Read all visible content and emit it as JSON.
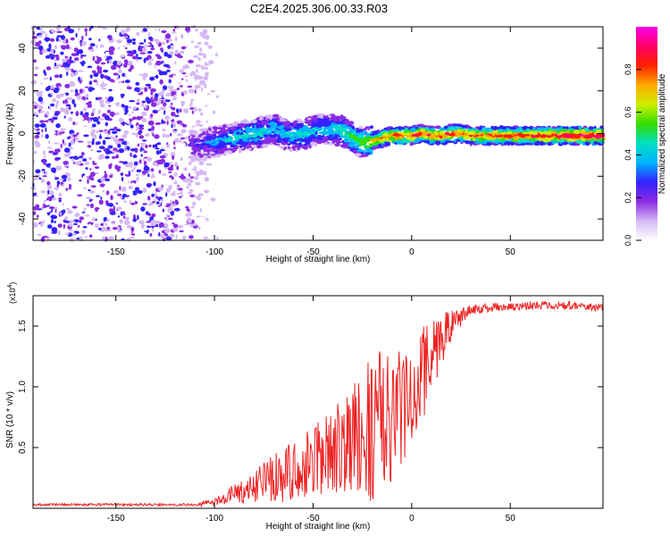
{
  "figure": {
    "title": "C2E4.2025.306.00.33.R03"
  },
  "chart_data": [
    {
      "type": "heatmap",
      "name": "spectrogram",
      "xlabel": "Height of straight line (km)",
      "ylabel": "Frequency (Hz)",
      "xlim": [
        -192,
        97
      ],
      "ylim": [
        -50,
        50
      ],
      "xticks": [
        -150,
        -100,
        -50,
        0,
        50
      ],
      "yticks": [
        -40,
        -20,
        0,
        20,
        40
      ],
      "colorbar": {
        "label": "Normalized spectral amplitude",
        "range": [
          0,
          1
        ],
        "ticks": [
          "0.0",
          "0.2",
          "0.4",
          "0.6",
          "0.8"
        ],
        "colormap": [
          "#ffffff",
          "#d6b8f5",
          "#8a2be2",
          "#3322ff",
          "#00b4ff",
          "#00e0c0",
          "#33dd00",
          "#ccee00",
          "#ffaa00",
          "#ff2200",
          "#ff0066",
          "#ff00ee"
        ]
      },
      "ridge": {
        "x": [
          -112,
          -105,
          -100,
          -95,
          -90,
          -85,
          -80,
          -75,
          -70,
          -65,
          -60,
          -55,
          -50,
          -45,
          -40,
          -35,
          -30,
          -25,
          -22,
          -18,
          -15,
          -10,
          -5,
          0,
          5,
          10,
          15,
          20,
          25,
          30,
          40,
          50,
          60,
          70,
          80,
          90,
          97
        ],
        "y": [
          -6,
          -5,
          -4,
          -3,
          -2,
          -1,
          0,
          1,
          2,
          0,
          -1,
          0,
          1,
          2,
          2,
          1,
          -2,
          -4,
          -4,
          -3,
          -2,
          -1,
          -1,
          -1,
          0,
          -1,
          -1,
          0,
          0,
          -1,
          -1,
          -1,
          -1,
          -1,
          -1,
          -1,
          -1
        ],
        "amplitude": [
          0.25,
          0.3,
          0.35,
          0.38,
          0.42,
          0.45,
          0.45,
          0.44,
          0.42,
          0.4,
          0.42,
          0.45,
          0.42,
          0.4,
          0.45,
          0.5,
          0.55,
          0.6,
          0.65,
          0.75,
          0.8,
          0.85,
          0.85,
          0.85,
          0.85,
          0.85,
          0.85,
          0.85,
          0.82,
          0.82,
          0.85,
          0.85,
          0.88,
          0.9,
          0.95,
          0.97,
          0.97
        ]
      },
      "noise_region": {
        "x_from": -192,
        "x_to": -105,
        "density": "high",
        "amplitude": [
          0.02,
          0.3
        ]
      }
    },
    {
      "type": "line",
      "name": "snr",
      "xlabel": "Height of straight line (km)",
      "ylabel": "SNR (10 * v/v)",
      "yscale_label": "(x10",
      "yscale_exponent": "4",
      "xlim": [
        -192,
        97
      ],
      "ylim": [
        0,
        1.75
      ],
      "xticks": [
        -150,
        -100,
        -50,
        0,
        50
      ],
      "yticks": [
        "0.5",
        "1.0",
        "1.5"
      ],
      "line_color": "#ee2222",
      "envelope": {
        "x": [
          -192,
          -110,
          -100,
          -95,
          -90,
          -85,
          -80,
          -75,
          -70,
          -65,
          -60,
          -55,
          -50,
          -45,
          -40,
          -35,
          -30,
          -25,
          -20,
          -15,
          -10,
          -5,
          0,
          5,
          10,
          15,
          20,
          25,
          30,
          40,
          50,
          60,
          70,
          80,
          90,
          97
        ],
        "y": [
          0.03,
          0.03,
          0.05,
          0.08,
          0.12,
          0.15,
          0.2,
          0.22,
          0.25,
          0.27,
          0.3,
          0.33,
          0.37,
          0.42,
          0.47,
          0.52,
          0.57,
          0.63,
          0.68,
          0.73,
          0.78,
          0.85,
          0.95,
          1.1,
          1.25,
          1.38,
          1.5,
          1.58,
          1.63,
          1.65,
          1.66,
          1.67,
          1.67,
          1.67,
          1.66,
          1.65
        ]
      },
      "spread": {
        "x": [
          -192,
          -110,
          -95,
          -80,
          -60,
          -40,
          -25,
          -20,
          -10,
          0,
          10,
          20,
          30,
          97
        ],
        "y": [
          0.01,
          0.01,
          0.05,
          0.15,
          0.25,
          0.35,
          0.5,
          0.65,
          0.55,
          0.45,
          0.35,
          0.12,
          0.04,
          0.03
        ]
      }
    }
  ]
}
